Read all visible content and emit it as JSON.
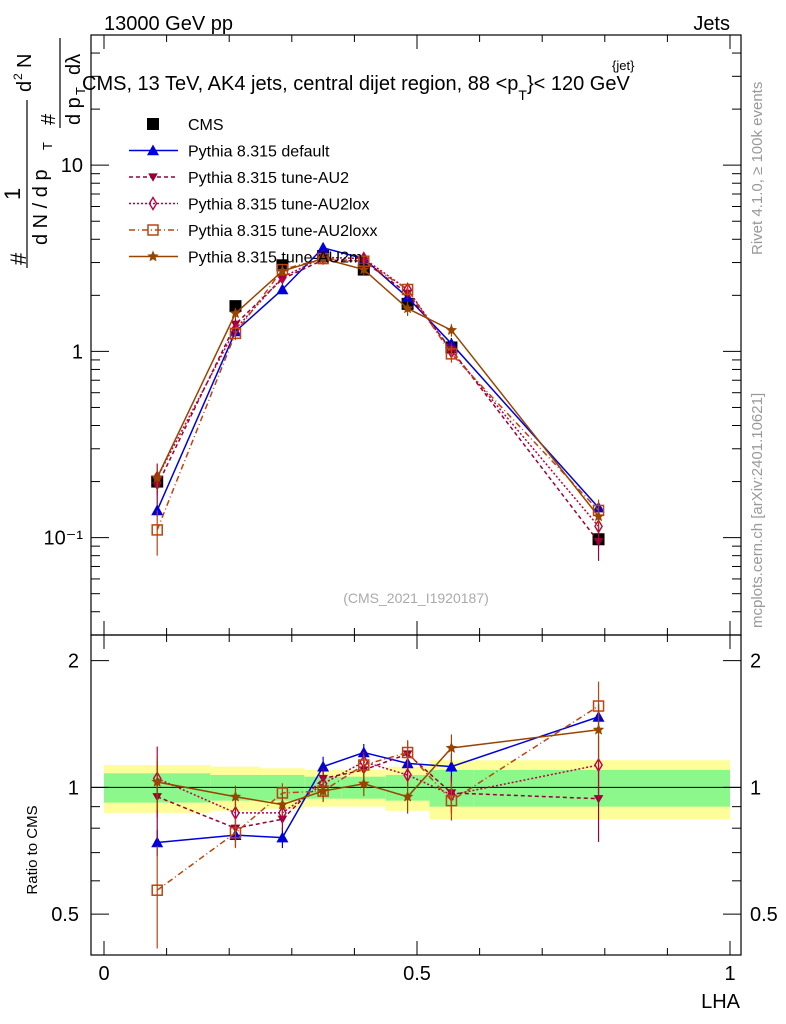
{
  "header": {
    "left": "13000 GeV pp",
    "right": "Jets"
  },
  "plot_title": "CMS, 13 TeV, AK4 jets, central dijet region, 88 <p",
  "plot_title_sup": "{jet}",
  "plot_title_sub": "T",
  "plot_title_end": "}< 120 GeV",
  "side_right_top": "Rivet 4.1.0, ≥ 100k events",
  "side_right_bottom": "mcplots.cern.ch [arXiv:2401.10621]",
  "analysis_id": "(CMS_2021_I1920187)",
  "ylabel_top": {
    "one": "1",
    "n_num": "d",
    "n_den": "d N / d p",
    "tsub": "T",
    "hash": "#",
    "dN": "N",
    "sup2": "2",
    "dpt": "d p",
    "dlam": "dλ"
  },
  "ylabel_bottom": "Ratio to CMS",
  "xlabel": "LHA",
  "colors": {
    "cms": "#000000",
    "default": "#0000dd",
    "au2": "#990033",
    "au2lox": "#bb0044",
    "au2loxx": "#bb4411",
    "au2m": "#994400",
    "band_inner": "#8cf88c",
    "band_outer": "#fdfd99"
  },
  "chart_data": {
    "type": "line",
    "xlim": [
      0,
      1
    ],
    "ylim_top": [
      0.03,
      50
    ],
    "ylim_bottom": [
      0.4,
      2.3
    ],
    "x_ticks": [
      "0",
      "0.5",
      "1"
    ],
    "x_tick_values": [
      0,
      0.5,
      1
    ],
    "y_ticks_top": [
      "10⁻¹",
      "1",
      "10"
    ],
    "y_tick_values_top": [
      0.1,
      1,
      10
    ],
    "y_ticks_bottom": [
      "0.5",
      "1",
      "2"
    ],
    "y_tick_values_bottom": [
      0.5,
      1,
      2
    ],
    "x": [
      0.085,
      0.21,
      0.285,
      0.35,
      0.415,
      0.485,
      0.555,
      0.79
    ],
    "bins": [
      [
        0.0,
        0.17
      ],
      [
        0.17,
        0.25
      ],
      [
        0.25,
        0.32
      ],
      [
        0.32,
        0.38
      ],
      [
        0.38,
        0.45
      ],
      [
        0.45,
        0.52
      ],
      [
        0.52,
        0.59
      ],
      [
        0.59,
        1.0
      ]
    ],
    "ratio_band_inner": [
      0.08,
      0.07,
      0.07,
      0.06,
      0.06,
      0.07,
      0.1,
      0.1
    ],
    "ratio_band_outer": [
      0.13,
      0.12,
      0.11,
      0.1,
      0.1,
      0.12,
      0.16,
      0.16
    ],
    "series": [
      {
        "name": "CMS",
        "key": "cms",
        "marker": "square-filled",
        "dash": "",
        "values": [
          0.2,
          1.75,
          2.9,
          3.25,
          2.75,
          1.8,
          1.05,
          0.098
        ],
        "ratio": [
          1,
          1,
          1,
          1,
          1,
          1,
          1,
          1
        ],
        "err": [
          0.02,
          0.1,
          0.15,
          0.15,
          0.15,
          0.12,
          0.08,
          0.008
        ]
      },
      {
        "name": "Pythia 8.315 default",
        "key": "default",
        "marker": "triangle-up-filled",
        "dash": "",
        "values": [
          0.14,
          1.28,
          2.15,
          3.6,
          3.15,
          1.95,
          1.1,
          0.145
        ],
        "ratio": [
          0.74,
          0.77,
          0.76,
          1.12,
          1.21,
          1.14,
          1.12,
          1.47
        ],
        "err": [
          0.01,
          0.08,
          0.12,
          0.2,
          0.15,
          0.12,
          0.08,
          0.01
        ]
      },
      {
        "name": "Pythia 8.315 tune-AU2",
        "key": "au2",
        "marker": "triangle-down-filled",
        "dash": "4,3",
        "values": [
          0.19,
          1.4,
          2.45,
          3.1,
          3.05,
          2.05,
          1.02,
          0.095
        ],
        "ratio": [
          0.95,
          0.8,
          0.84,
          1.05,
          1.1,
          1.2,
          0.97,
          0.94
        ],
        "err": [
          0.04,
          0.1,
          0.15,
          0.18,
          0.18,
          0.15,
          0.1,
          0.02
        ]
      },
      {
        "name": "Pythia 8.315 tune-AU2lox",
        "key": "au2lox",
        "marker": "diamond-open",
        "dash": "2,2",
        "values": [
          0.21,
          1.32,
          2.5,
          3.2,
          3.15,
          2.15,
          1.0,
          0.115
        ],
        "ratio": [
          1.05,
          0.87,
          0.87,
          1.02,
          1.15,
          1.07,
          0.96,
          1.13
        ],
        "err": [
          0.04,
          0.1,
          0.15,
          0.18,
          0.18,
          0.15,
          0.1,
          0.02
        ]
      },
      {
        "name": "Pythia 8.315 tune-AU2loxx",
        "key": "au2loxx",
        "marker": "square-open",
        "dash": "6,3,1,3",
        "values": [
          0.11,
          1.25,
          2.75,
          3.15,
          3.05,
          2.15,
          0.97,
          0.14
        ],
        "ratio": [
          0.57,
          0.78,
          0.97,
          0.98,
          1.13,
          1.21,
          0.93,
          1.56
        ],
        "err": [
          0.03,
          0.1,
          0.15,
          0.18,
          0.18,
          0.15,
          0.1,
          0.02
        ]
      },
      {
        "name": "Pythia 8.315 tune-AU2m",
        "key": "au2m",
        "marker": "star",
        "dash": "",
        "values": [
          0.21,
          1.6,
          2.7,
          3.15,
          2.75,
          1.7,
          1.3,
          0.13
        ],
        "ratio": [
          1.03,
          0.95,
          0.91,
          0.98,
          1.02,
          0.95,
          1.24,
          1.37
        ],
        "err": [
          0.03,
          0.1,
          0.15,
          0.18,
          0.18,
          0.15,
          0.1,
          0.02
        ]
      }
    ]
  }
}
